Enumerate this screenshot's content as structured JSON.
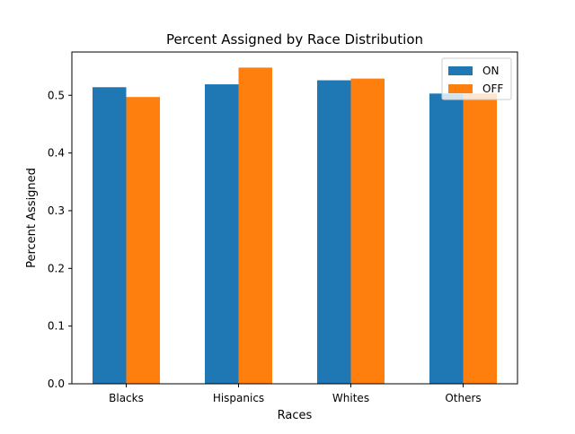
{
  "chart_data": {
    "type": "bar",
    "title": "Percent Assigned by Race Distribution",
    "xlabel": "Races",
    "ylabel": "Percent Assigned",
    "categories": [
      "Blacks",
      "Hispanics",
      "Whites",
      "Others"
    ],
    "series": [
      {
        "name": "ON",
        "values": [
          0.514,
          0.519,
          0.526,
          0.503
        ],
        "color": "#1f77b4"
      },
      {
        "name": "OFF",
        "values": [
          0.497,
          0.548,
          0.529,
          0.503
        ],
        "color": "#ff7f0e"
      }
    ],
    "ylim": [
      0,
      0.575
    ],
    "yticks": [
      0.0,
      0.1,
      0.2,
      0.3,
      0.4,
      0.5
    ],
    "ytick_labels": [
      "0.0",
      "0.1",
      "0.2",
      "0.3",
      "0.4",
      "0.5"
    ],
    "grid": false,
    "legend_position": "top-right"
  }
}
